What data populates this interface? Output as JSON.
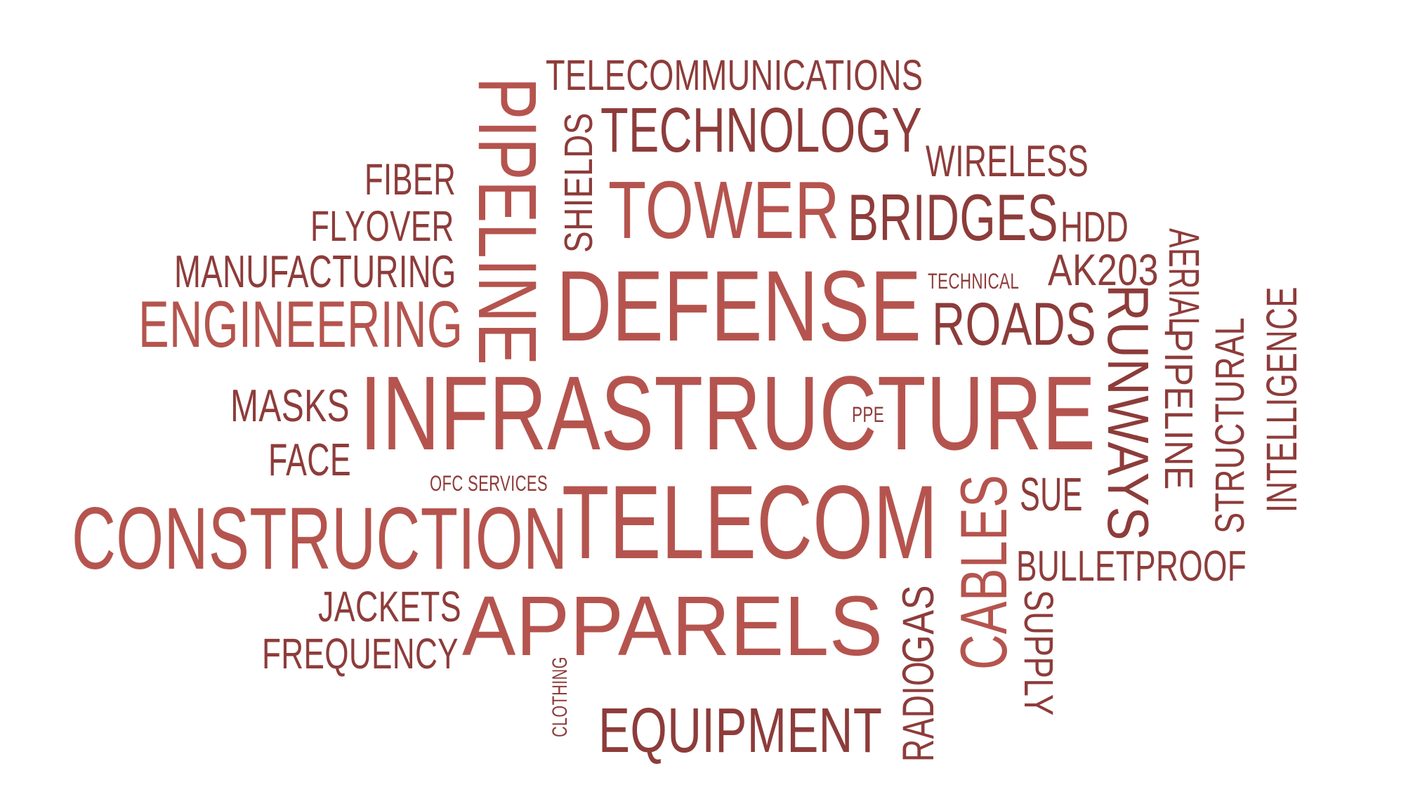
{
  "palette": {
    "primary": "#b5544e",
    "dark": "#8d3c3a"
  },
  "words": [
    {
      "text": "INFRASTRUCTURE"
    },
    {
      "text": "DEFENSE"
    },
    {
      "text": "TELECOM"
    },
    {
      "text": "APPARELS"
    },
    {
      "text": "CONSTRUCTION"
    },
    {
      "text": "TOWER"
    },
    {
      "text": "PIPELINE"
    },
    {
      "text": "ENGINEERING"
    },
    {
      "text": "TECHNOLOGY"
    },
    {
      "text": "BRIDGES"
    },
    {
      "text": "ROADS"
    },
    {
      "text": "RUNWAYS"
    },
    {
      "text": "EQUIPMENT"
    },
    {
      "text": "CABLES"
    },
    {
      "text": "MANUFACTURING"
    },
    {
      "text": "TELECOMMUNICATIONS"
    },
    {
      "text": "WIRELESS"
    },
    {
      "text": "FIBER"
    },
    {
      "text": "FLYOVER"
    },
    {
      "text": "MASKS"
    },
    {
      "text": "FACE"
    },
    {
      "text": "JACKETS"
    },
    {
      "text": "FREQUENCY"
    },
    {
      "text": "SHIELDS"
    },
    {
      "text": "HDD"
    },
    {
      "text": "AK203"
    },
    {
      "text": "AERIAL"
    },
    {
      "text": "PIPELINE"
    },
    {
      "text": "STRUCTURAL"
    },
    {
      "text": "INTELLIGENCE"
    },
    {
      "text": "SUE"
    },
    {
      "text": "BULLETPROOF"
    },
    {
      "text": "SUPPLY"
    },
    {
      "text": "RADIO"
    },
    {
      "text": "GAS"
    },
    {
      "text": "TECHNICAL"
    },
    {
      "text": "PPE"
    },
    {
      "text": "OFC SERVICES"
    },
    {
      "text": "CLOTHING"
    }
  ]
}
